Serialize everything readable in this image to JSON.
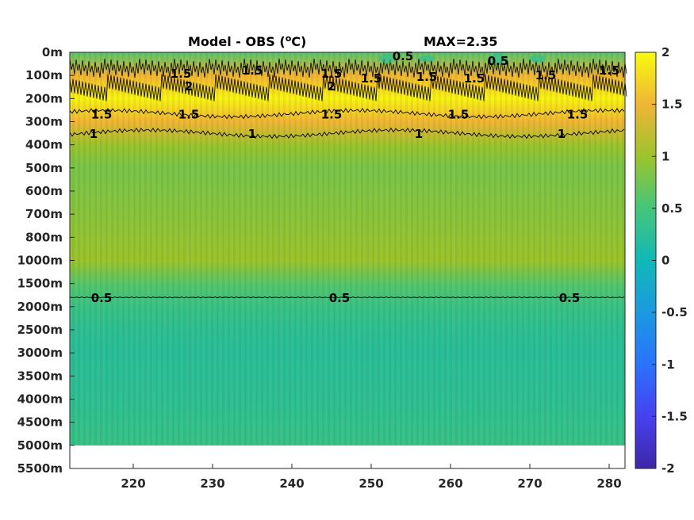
{
  "chart_data": {
    "type": "heatmap",
    "title": "Model - OBS (",
    "title_unit_sup": "o",
    "title_unit_tail": "C)",
    "max_label": "MAX=2.35",
    "xlim": [
      212,
      282
    ],
    "x_ticks": [
      220,
      230,
      240,
      250,
      260,
      270,
      280
    ],
    "y_tick_labels": [
      "0m",
      "100m",
      "200m",
      "300m",
      "400m",
      "500m",
      "600m",
      "700m",
      "800m",
      "1000m",
      "1500m",
      "2000m",
      "2500m",
      "3000m",
      "3500m",
      "4000m",
      "4500m",
      "5000m",
      "5500m"
    ],
    "data_bottom_label": "5000m",
    "colorbar": {
      "range": [
        -2,
        2
      ],
      "ticks": [
        "2",
        "1.5",
        "1",
        "0.5",
        "0",
        "-0.5",
        "-1",
        "-1.5",
        "-2"
      ],
      "colormap": "parula"
    },
    "profile_levels": [
      "0m",
      "100m",
      "200m",
      "300m",
      "400m",
      "500m",
      "600m",
      "700m",
      "800m",
      "1000m",
      "1500m",
      "2000m",
      "2500m",
      "3000m",
      "3500m",
      "4000m",
      "4500m",
      "5000m"
    ],
    "profile_values": [
      0.6,
      1.5,
      1.95,
      1.5,
      1.0,
      0.8,
      0.85,
      0.9,
      0.95,
      1.0,
      0.6,
      0.4,
      0.3,
      0.25,
      0.28,
      0.3,
      0.35,
      0.4
    ],
    "contours": [
      {
        "level": "0.5",
        "depth": "1800m",
        "labels_x": [
          216,
          246,
          275
        ]
      },
      {
        "level": "1",
        "depth": "350m",
        "labels_x": [
          215,
          235,
          256,
          274
        ]
      },
      {
        "level": "1.5",
        "depth": "270m",
        "labels_x": [
          216,
          227,
          245,
          261,
          276
        ]
      }
    ],
    "surface_labels": [
      {
        "text": "1.5",
        "x": 226,
        "depth": "90m"
      },
      {
        "text": "1.5",
        "x": 235,
        "depth": "80m"
      },
      {
        "text": "1.5",
        "x": 245,
        "depth": "90m"
      },
      {
        "text": "1.5",
        "x": 250,
        "depth": "115m"
      },
      {
        "text": "1.5",
        "x": 257,
        "depth": "110m"
      },
      {
        "text": "1.5",
        "x": 263,
        "depth": "115m"
      },
      {
        "text": "1.5",
        "x": 272,
        "depth": "100m"
      },
      {
        "text": "1.5",
        "x": 280,
        "depth": "80m"
      },
      {
        "text": "0.5",
        "x": 254,
        "depth": "20m"
      },
      {
        "text": "0.5",
        "x": 266,
        "depth": "50m"
      },
      {
        "text": "2",
        "x": 227,
        "depth": "155m"
      },
      {
        "text": "2",
        "x": 245,
        "depth": "155m"
      }
    ]
  }
}
